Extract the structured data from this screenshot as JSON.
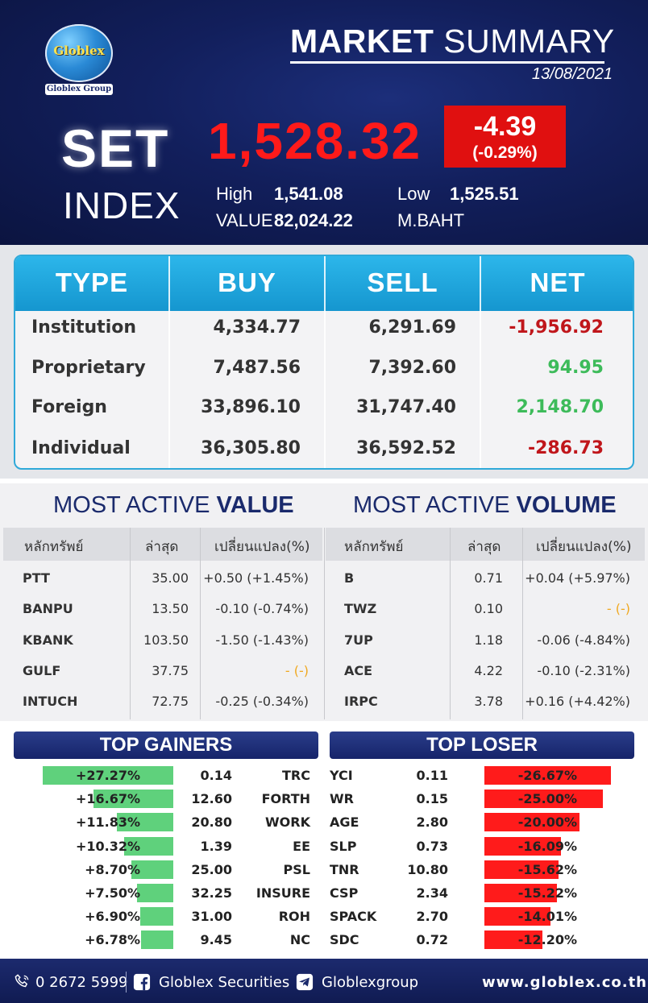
{
  "header": {
    "logo_word": "Globlex",
    "logo_group": "Globlex Group",
    "title_bold": "MARKET",
    "title_rest": " SUMMARY",
    "date": "13/08/2021",
    "set_word": "SET",
    "index_word": "INDEX",
    "index_value": "1,528.32",
    "change": "-4.39",
    "change_pct": "(-0.29%)",
    "high_label": "High",
    "high_value": "1,541.08",
    "low_label": "Low",
    "low_value": "1,525.51",
    "value_label": "VALUE",
    "value_value": "82,024.22",
    "value_unit": "M.BAHT"
  },
  "investors": {
    "headers": [
      "TYPE",
      "BUY",
      "SELL",
      "NET"
    ],
    "rows": [
      {
        "type": "Institution",
        "buy": "4,334.77",
        "sell": "6,291.69",
        "net": "-1,956.92",
        "dir": "neg"
      },
      {
        "type": "Proprietary",
        "buy": "7,487.56",
        "sell": "7,392.60",
        "net": "94.95",
        "dir": "pos"
      },
      {
        "type": "Foreign",
        "buy": "33,896.10",
        "sell": "31,747.40",
        "net": "2,148.70",
        "dir": "pos"
      },
      {
        "type": "Individual",
        "buy": "36,305.80",
        "sell": "36,592.52",
        "net": "-286.73",
        "dir": "neg"
      }
    ]
  },
  "most_active_value": {
    "title_plain": "MOST ACTIVE ",
    "title_bold": "VALUE",
    "headers": [
      "หลักทรัพย์",
      "ล่าสุด",
      "เปลี่ยนแปลง(%)"
    ],
    "rows": [
      {
        "sym": "PTT",
        "last": "35.00",
        "chg": "+0.50 (+1.45%)",
        "dir": "pos"
      },
      {
        "sym": "BANPU",
        "last": "13.50",
        "chg": "-0.10 (-0.74%)",
        "dir": "neg"
      },
      {
        "sym": "KBANK",
        "last": "103.50",
        "chg": "-1.50 (-1.43%)",
        "dir": "neg"
      },
      {
        "sym": "GULF",
        "last": "37.75",
        "chg": "- (-)",
        "dir": "flat"
      },
      {
        "sym": "INTUCH",
        "last": "72.75",
        "chg": "-0.25 (-0.34%)",
        "dir": "neg"
      }
    ]
  },
  "most_active_volume": {
    "title_plain": "MOST ACTIVE ",
    "title_bold": "VOLUME",
    "headers": [
      "หลักทรัพย์",
      "ล่าสุด",
      "เปลี่ยนแปลง(%)"
    ],
    "rows": [
      {
        "sym": "B",
        "last": "0.71",
        "chg": "+0.04 (+5.97%)",
        "dir": "pos"
      },
      {
        "sym": "TWZ",
        "last": "0.10",
        "chg": "- (-)",
        "dir": "flat"
      },
      {
        "sym": "7UP",
        "last": "1.18",
        "chg": "-0.06 (-4.84%)",
        "dir": "neg"
      },
      {
        "sym": "ACE",
        "last": "4.22",
        "chg": "-0.10 (-2.31%)",
        "dir": "neg"
      },
      {
        "sym": "IRPC",
        "last": "3.78",
        "chg": "+0.16 (+4.42%)",
        "dir": "pos"
      }
    ]
  },
  "top_gainers": {
    "title": "TOP GAINERS",
    "rows": [
      {
        "pct": "+27.27%",
        "price": "0.14",
        "sym": "TRC",
        "pct_value": 27.27
      },
      {
        "pct": "+16.67%",
        "price": "12.60",
        "sym": "FORTH",
        "pct_value": 16.67
      },
      {
        "pct": "+11.83%",
        "price": "20.80",
        "sym": "WORK",
        "pct_value": 11.83
      },
      {
        "pct": "+10.32%",
        "price": "1.39",
        "sym": "EE",
        "pct_value": 10.32
      },
      {
        "pct": "+8.70%",
        "price": "25.00",
        "sym": "PSL",
        "pct_value": 8.7
      },
      {
        "pct": "+7.50%",
        "price": "32.25",
        "sym": "INSURE",
        "pct_value": 7.5
      },
      {
        "pct": "+6.90%",
        "price": "31.00",
        "sym": "ROH",
        "pct_value": 6.9
      },
      {
        "pct": "+6.78%",
        "price": "9.45",
        "sym": "NC",
        "pct_value": 6.78
      }
    ]
  },
  "top_loser": {
    "title": "TOP LOSER",
    "rows": [
      {
        "sym": "YCI",
        "price": "0.11",
        "pct": "-26.67%",
        "pct_value": 26.67
      },
      {
        "sym": "WR",
        "price": "0.15",
        "pct": "-25.00%",
        "pct_value": 25.0
      },
      {
        "sym": "AGE",
        "price": "2.80",
        "pct": "-20.00%",
        "pct_value": 20.0
      },
      {
        "sym": "SLP",
        "price": "0.73",
        "pct": "-16.09%",
        "pct_value": 16.09
      },
      {
        "sym": "TNR",
        "price": "10.80",
        "pct": "-15.62%",
        "pct_value": 15.62
      },
      {
        "sym": "CSP",
        "price": "2.34",
        "pct": "-15.22%",
        "pct_value": 15.22
      },
      {
        "sym": "SPACK",
        "price": "2.70",
        "pct": "-14.01%",
        "pct_value": 14.01
      },
      {
        "sym": "SDC",
        "price": "0.72",
        "pct": "-12.20%",
        "pct_value": 12.2
      }
    ]
  },
  "footer": {
    "phone": "0 2672 5999",
    "facebook": "Globlex Securities",
    "telegram": "Globlexgroup",
    "website": "www.globlex.co.th",
    "icons": [
      "phone-icon",
      "facebook-icon",
      "telegram-icon"
    ]
  },
  "colors": {
    "header_bg": "#121f5c",
    "index_red": "#ff1a1a",
    "change_box": "#e01010",
    "table_blue": "#1596cf",
    "negative": "#c0161b",
    "positive": "#3dbb5a",
    "flat": "#f0a820",
    "gainer_bar": "#5fd17c",
    "loser_bar": "#ff1b1b",
    "navy": "#1a2a6c"
  }
}
